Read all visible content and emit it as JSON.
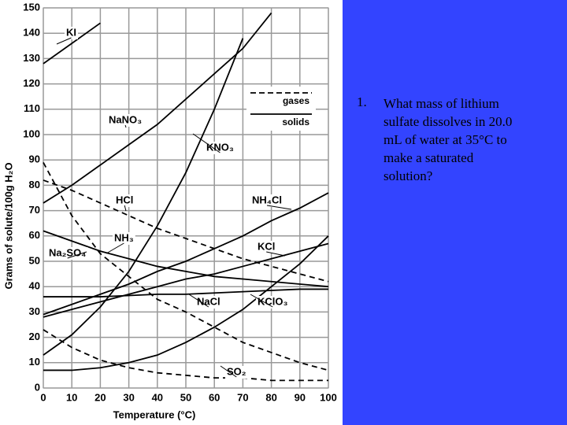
{
  "chart_data": {
    "type": "line",
    "xlabel": "Temperature (°C)",
    "ylabel": "Grams of solute/100g H₂O",
    "x": [
      0,
      10,
      20,
      30,
      40,
      50,
      60,
      70,
      80,
      90,
      100
    ],
    "xlim": [
      0,
      100
    ],
    "xticks": [
      0,
      10,
      20,
      30,
      40,
      50,
      60,
      70,
      80,
      90,
      100
    ],
    "ylim": [
      0,
      150
    ],
    "yticks": [
      0,
      10,
      20,
      30,
      40,
      50,
      60,
      70,
      80,
      90,
      100,
      110,
      120,
      130,
      140,
      150
    ],
    "grid": true,
    "legend": [
      {
        "label": "gases",
        "dashed": true
      },
      {
        "label": "solids",
        "dashed": false
      }
    ],
    "series": [
      {
        "name": "KI",
        "color": "#000000",
        "dashed": false,
        "values": [
          128,
          136,
          144,
          null,
          null,
          null,
          null,
          null,
          null,
          null,
          null
        ]
      },
      {
        "name": "NaNO₃",
        "color": "#000000",
        "dashed": false,
        "values": [
          73,
          80,
          88,
          96,
          104,
          114,
          124,
          134,
          148,
          null,
          null
        ]
      },
      {
        "name": "KNO₃",
        "color": "#000000",
        "dashed": false,
        "values": [
          13,
          21,
          32,
          46,
          64,
          85,
          110,
          138,
          null,
          null,
          null
        ]
      },
      {
        "name": "HCl",
        "color": "#000000",
        "dashed": true,
        "values": [
          82,
          78,
          73,
          68,
          63,
          59,
          55,
          51,
          48,
          45,
          42
        ]
      },
      {
        "name": "NH₄Cl",
        "color": "#000000",
        "dashed": false,
        "values": [
          29,
          33,
          37,
          41,
          46,
          50,
          55,
          60,
          66,
          71,
          77
        ]
      },
      {
        "name": "NH₃",
        "color": "#000000",
        "dashed": true,
        "values": [
          89,
          68,
          53,
          44,
          35,
          30,
          24,
          18,
          14,
          10,
          7
        ]
      },
      {
        "name": "Na₂SO₄",
        "color": "#000000",
        "dashed": false,
        "values": [
          62,
          58,
          54,
          51,
          48,
          46,
          44,
          43,
          42,
          41,
          40
        ]
      },
      {
        "name": "KCl",
        "color": "#000000",
        "dashed": false,
        "values": [
          28,
          31,
          34,
          37,
          40,
          43,
          45,
          48,
          51,
          54,
          57
        ]
      },
      {
        "name": "NaCl",
        "color": "#000000",
        "dashed": false,
        "values": [
          36,
          36,
          36,
          36.5,
          37,
          37,
          37.5,
          38,
          38.5,
          39,
          39
        ]
      },
      {
        "name": "KClO₃",
        "color": "#000000",
        "dashed": false,
        "values": [
          7,
          7,
          8,
          10,
          13,
          18,
          24,
          31,
          40,
          49,
          60
        ]
      },
      {
        "name": "SO₂",
        "color": "#000000",
        "dashed": true,
        "values": [
          23,
          16,
          11,
          8,
          6,
          5,
          4,
          4,
          3,
          3,
          3
        ]
      }
    ]
  },
  "slide": {
    "number": "1.",
    "question": "What mass of lithium sulfate dissolves in 20.0 mL of water at 35°C to make a saturated solution?"
  }
}
